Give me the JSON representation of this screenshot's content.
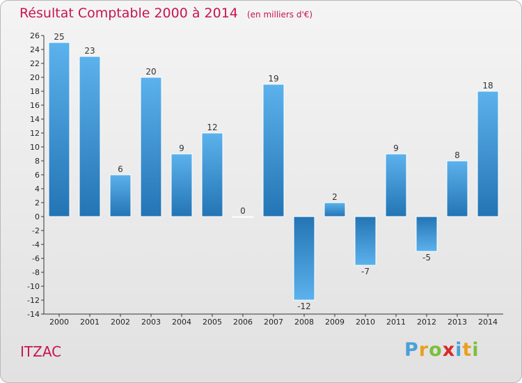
{
  "header": {
    "title": "Résultat Comptable 2000 à 2014",
    "unit": "(en milliers d'€)"
  },
  "commune": "ITZAC",
  "logo": {
    "letters": [
      {
        "char": "P",
        "color": "#4aa0d8"
      },
      {
        "char": "r",
        "color": "#e8a020"
      },
      {
        "char": "o",
        "color": "#7cbf3a"
      },
      {
        "char": "x",
        "color": "#d8282a"
      },
      {
        "char": "i",
        "color": "#4aa0d8"
      },
      {
        "char": "t",
        "color": "#e8a020"
      },
      {
        "char": "i",
        "color": "#7cbf3a"
      }
    ]
  },
  "chart_data": {
    "type": "bar",
    "title": "Résultat Comptable 2000 à 2014",
    "ylabel": "(en milliers d'€)",
    "xlabel": "",
    "categories": [
      "2000",
      "2001",
      "2002",
      "2003",
      "2004",
      "2005",
      "2006",
      "2007",
      "2008",
      "2009",
      "2010",
      "2011",
      "2012",
      "2013",
      "2014"
    ],
    "values": [
      25,
      23,
      6,
      20,
      9,
      12,
      0,
      19,
      -12,
      2,
      -7,
      9,
      -5,
      8,
      18
    ],
    "ylim": [
      -14,
      26
    ],
    "yticks": [
      26,
      24,
      22,
      20,
      18,
      16,
      14,
      12,
      10,
      8,
      6,
      4,
      2,
      0,
      -2,
      -4,
      -6,
      -8,
      -10,
      -12,
      -14
    ],
    "grid": false,
    "bar_color": "#3a8fd0"
  }
}
